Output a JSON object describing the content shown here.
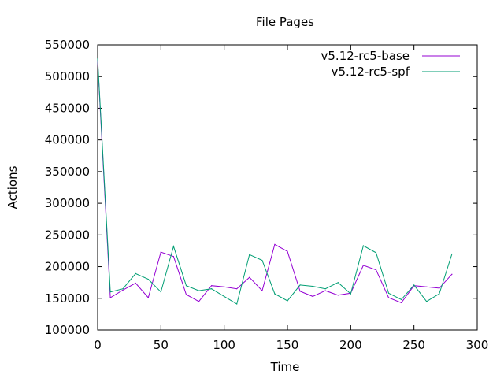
{
  "chart_data": {
    "type": "line",
    "title": "File Pages",
    "xlabel": "Time",
    "ylabel": "Actions",
    "xlim": [
      0,
      300
    ],
    "ylim": [
      100000,
      550000
    ],
    "xticks": [
      "0",
      "50",
      "100",
      "150",
      "200",
      "250",
      "300"
    ],
    "yticks": [
      "100000",
      "150000",
      "200000",
      "250000",
      "300000",
      "350000",
      "400000",
      "450000",
      "500000",
      "550000"
    ],
    "grid": false,
    "legend_position": "top-right",
    "series": [
      {
        "name": "v5.12-rc5-base",
        "color": "#9400d3",
        "x": [
          0,
          10,
          20,
          30,
          40,
          50,
          60,
          70,
          80,
          90,
          100,
          110,
          120,
          130,
          140,
          150,
          160,
          170,
          180,
          190,
          200,
          210,
          220,
          230,
          240,
          250,
          260,
          270,
          280
        ],
        "y": [
          525000,
          151000,
          163000,
          174000,
          151000,
          223000,
          216000,
          156000,
          145000,
          170000,
          168000,
          165000,
          183000,
          162000,
          235000,
          224000,
          161000,
          153000,
          162000,
          155000,
          158000,
          202000,
          195000,
          151000,
          143000,
          170000,
          168000,
          166000,
          188000
        ]
      },
      {
        "name": "v5.12-rc5-spf",
        "color": "#009e73",
        "x": [
          0,
          10,
          20,
          30,
          40,
          50,
          60,
          70,
          80,
          90,
          100,
          110,
          120,
          130,
          140,
          150,
          160,
          170,
          180,
          190,
          200,
          210,
          220,
          230,
          240,
          250,
          260,
          270,
          280
        ],
        "y": [
          528000,
          160000,
          165000,
          189000,
          180000,
          160000,
          232000,
          170000,
          162000,
          165000,
          153000,
          141000,
          219000,
          210000,
          157000,
          146000,
          171000,
          169000,
          165000,
          175000,
          157000,
          233000,
          222000,
          158000,
          148000,
          171000,
          145000,
          157000,
          220000
        ]
      }
    ]
  }
}
